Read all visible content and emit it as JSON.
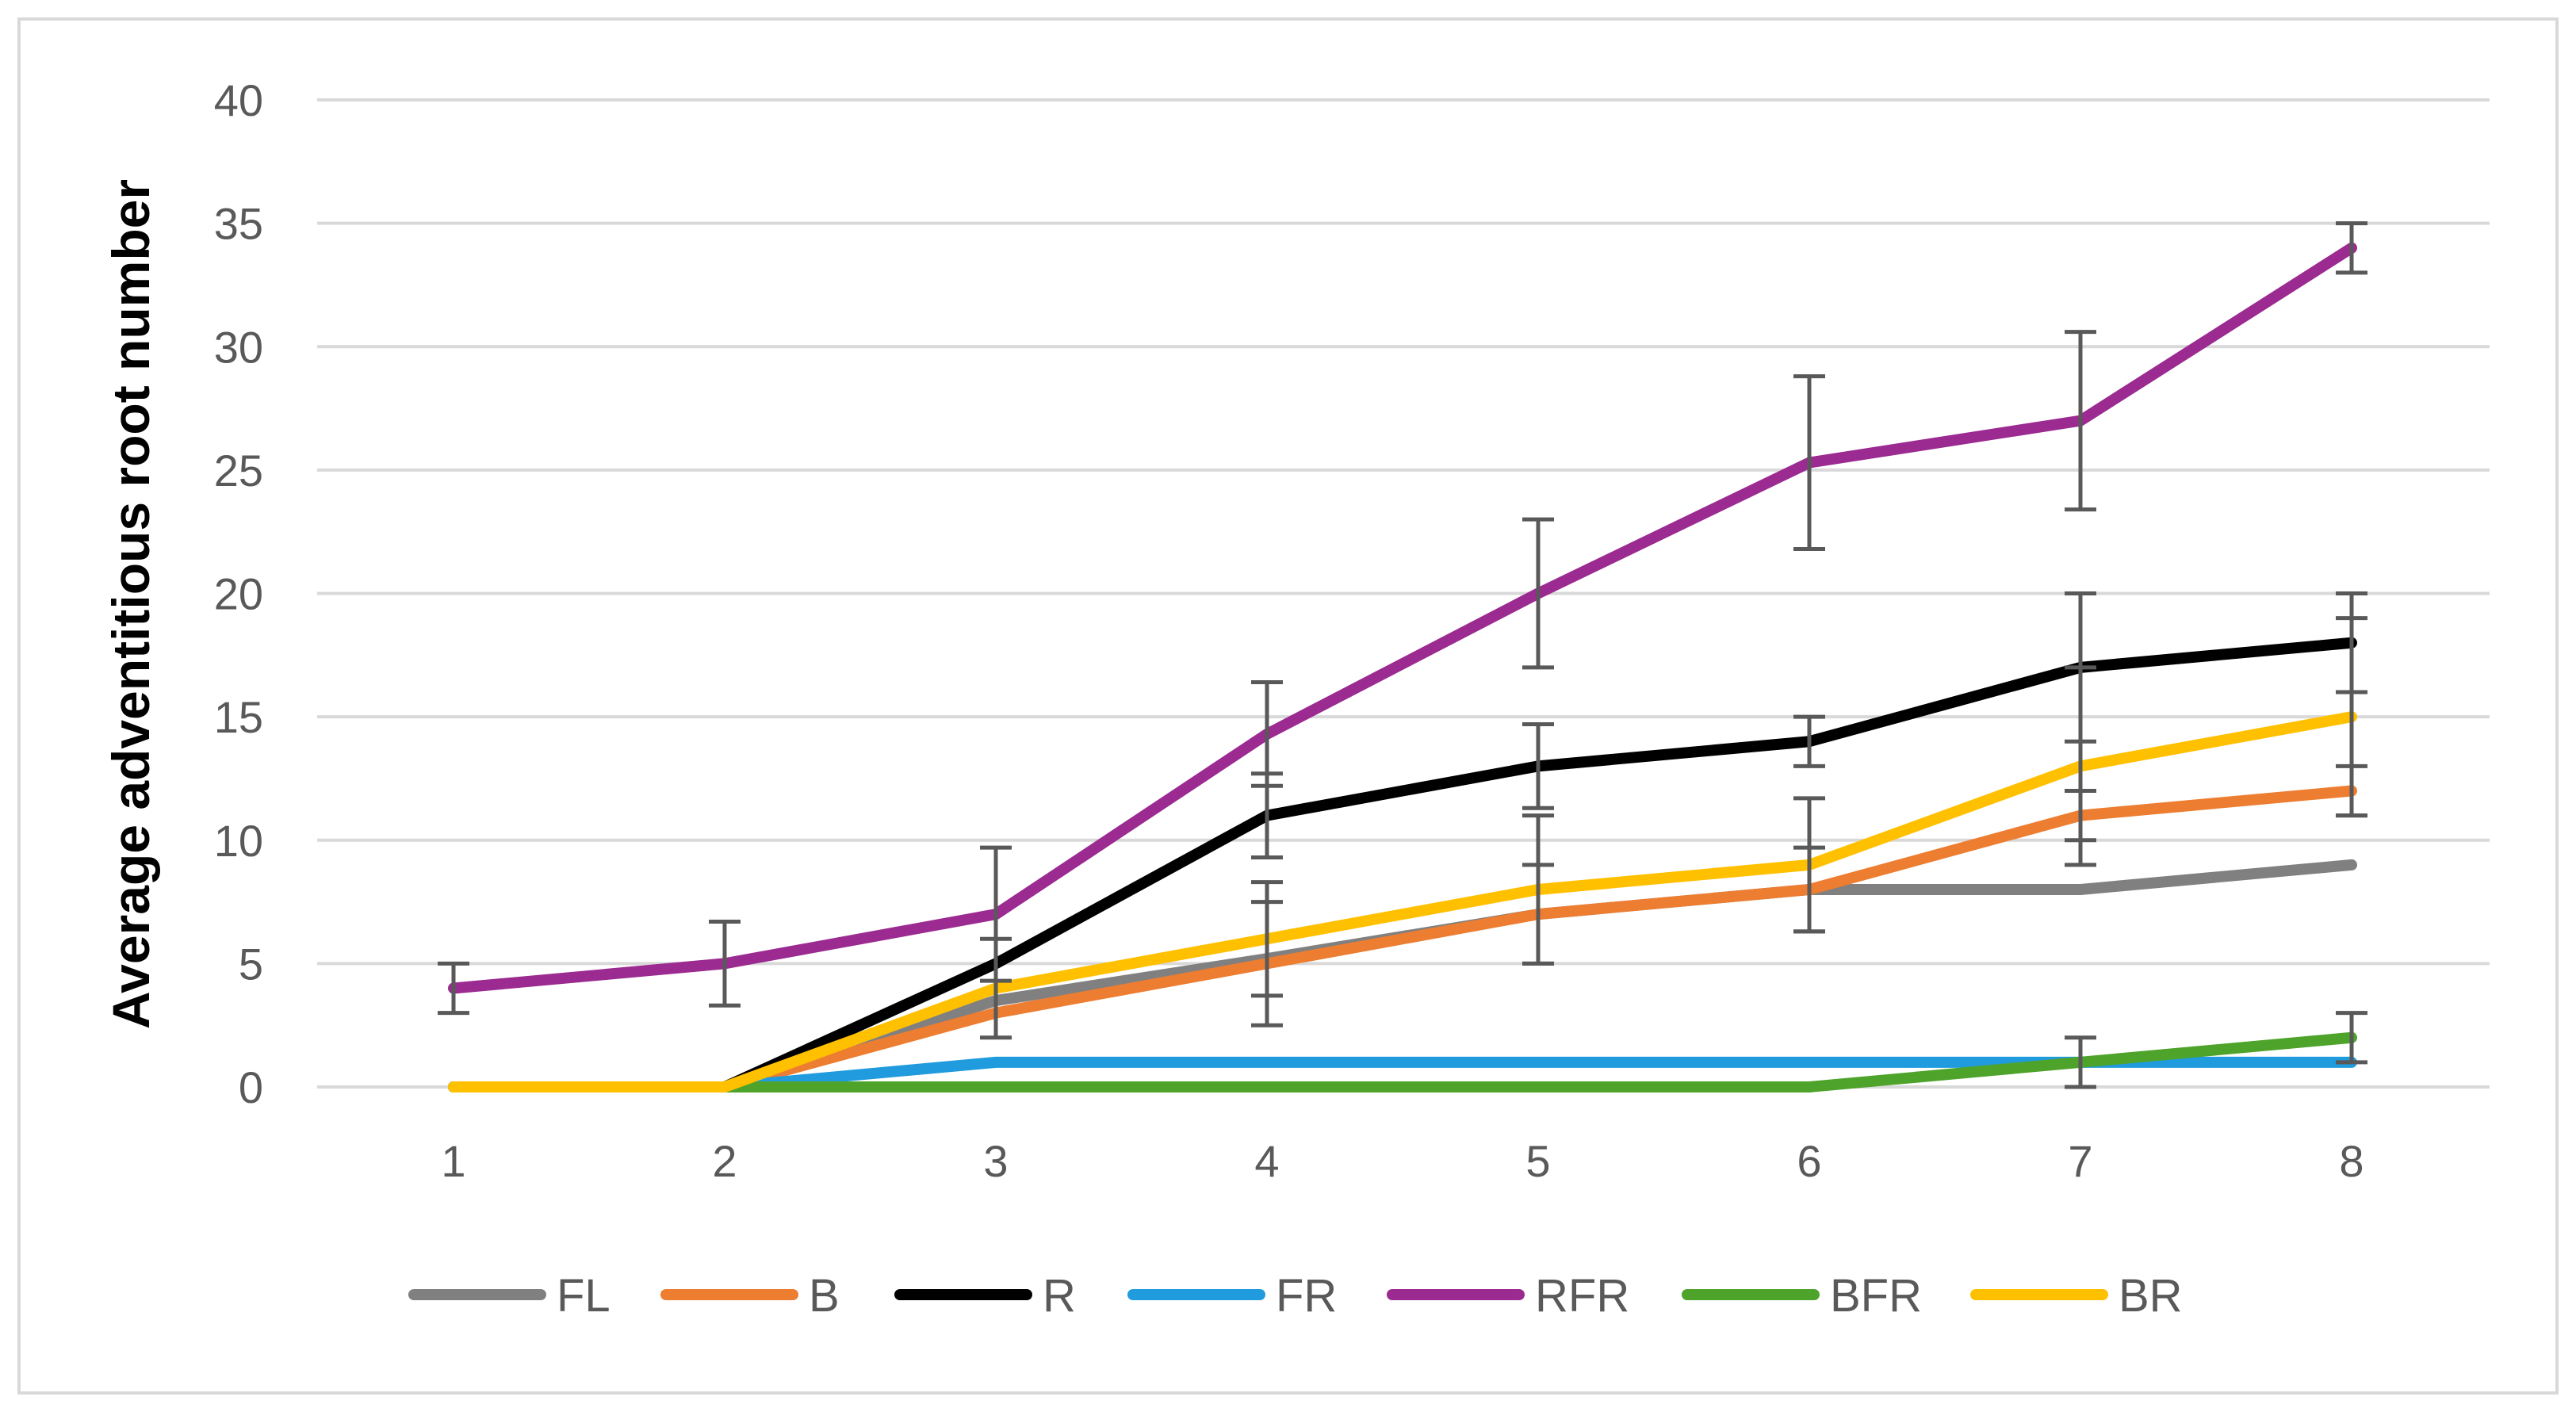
{
  "chart_data": {
    "type": "line",
    "title": "",
    "xlabel": "",
    "ylabel": "Average adventitious root number",
    "categories": [
      "1",
      "2",
      "3",
      "4",
      "5",
      "6",
      "7",
      "8"
    ],
    "ylim": [
      0,
      40
    ],
    "yticks": [
      0,
      5,
      10,
      15,
      20,
      25,
      30,
      35,
      40
    ],
    "grid": true,
    "legend_position": "bottom",
    "series": [
      {
        "name": "FL",
        "color": "#808080",
        "values": [
          0,
          0,
          3.5,
          5.2,
          7,
          8,
          8,
          9
        ],
        "errors": [
          0,
          0,
          0,
          0,
          0,
          0,
          0,
          0
        ]
      },
      {
        "name": "B",
        "color": "#ED7D31",
        "values": [
          0,
          0,
          3,
          5,
          7,
          8,
          11,
          12
        ],
        "errors": [
          0,
          0,
          0,
          2.5,
          2,
          1.7,
          1,
          1
        ]
      },
      {
        "name": "R",
        "color": "#000000",
        "values": [
          0,
          0,
          5,
          11,
          13,
          14,
          17,
          18
        ],
        "errors": [
          0,
          0,
          0,
          1.7,
          1.7,
          1,
          3,
          2
        ]
      },
      {
        "name": "FR",
        "color": "#1F9BDE",
        "values": [
          0,
          0,
          1,
          1,
          1,
          1,
          1,
          1
        ],
        "errors": [
          0,
          0,
          0,
          0,
          0,
          0,
          0,
          0
        ]
      },
      {
        "name": "RFR",
        "color": "#9B2A91",
        "values": [
          4,
          5,
          7,
          14.3,
          20,
          25.3,
          27,
          34
        ],
        "errors": [
          1,
          1.7,
          2.7,
          2.1,
          3,
          3.5,
          3.6,
          1
        ]
      },
      {
        "name": "BFR",
        "color": "#4EA32A",
        "values": [
          0,
          0,
          0,
          0,
          0,
          0,
          1,
          2
        ],
        "errors": [
          0,
          0,
          0,
          0,
          0,
          0,
          1,
          1
        ]
      },
      {
        "name": "BR",
        "color": "#FFC000",
        "values": [
          0,
          0,
          4,
          6,
          8,
          9,
          13,
          15
        ],
        "errors": [
          0,
          0,
          2,
          2.3,
          3,
          2.7,
          4,
          4
        ]
      }
    ]
  }
}
